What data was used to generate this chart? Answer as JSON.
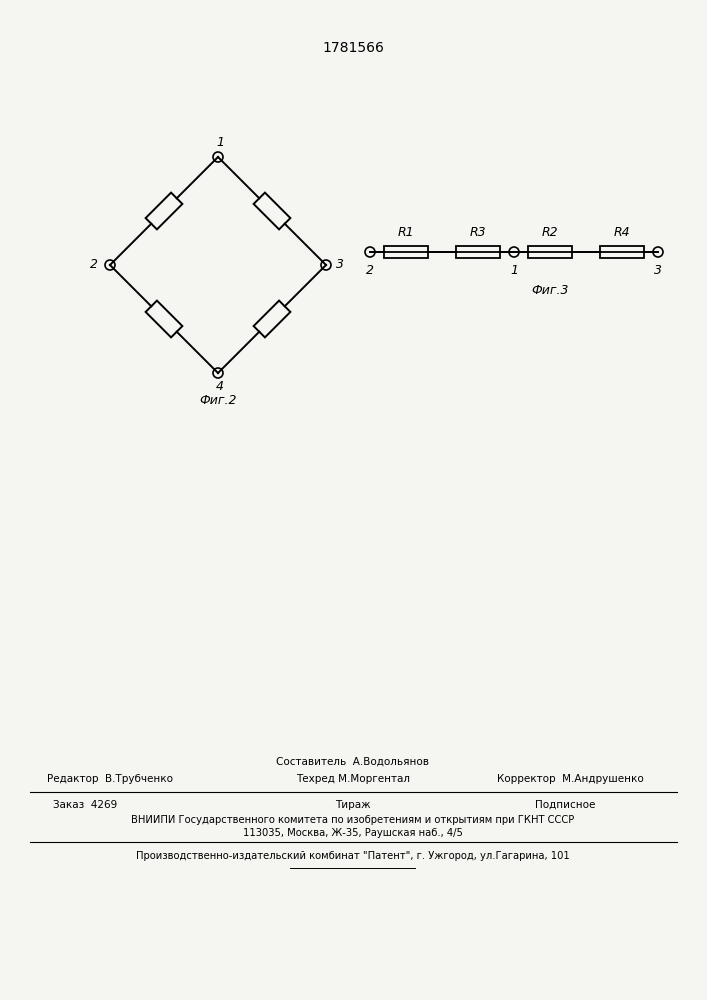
{
  "title": "1781566",
  "title_fontsize": 10,
  "bg_color": "#f5f5f2",
  "fig2_label": "Фиг.2",
  "fig3_label": "Фиг.3",
  "resistor_labels_fig3": [
    "R1",
    "R3",
    "R2",
    "R4"
  ],
  "footer_line0_col2": "Составитель  А.Водольянов",
  "footer_line1_col1": "Редактор  В.Трубченко",
  "footer_line1_col2": "Техред М.Моргентал",
  "footer_line1_col3": "Корректор  М.Андрушенко",
  "footer_line2_col1": "Заказ  4269",
  "footer_line2_col2": "Тираж",
  "footer_line2_col3": "Подписное",
  "footer_line3": "ВНИИПИ Государственного комитета по изобретениям и открытиям при ГКНТ СССР",
  "footer_line4": "113035, Москва, Ж-35, Раушская наб., 4/5",
  "footer_line5": "Производственно-издательский комбинат \"Патент\", г. Ужгород, ул.Гагарина, 101"
}
